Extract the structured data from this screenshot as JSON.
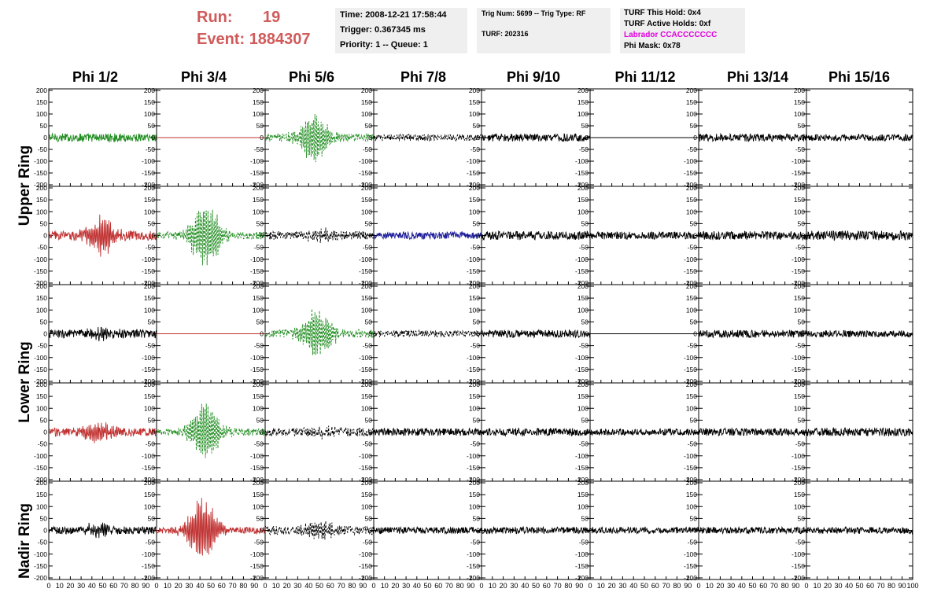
{
  "header": {
    "run_label": "Run:",
    "run_value": "19",
    "event_label": "Event:",
    "event_value": "1884307",
    "time": "Time: 2008-12-21 17:58:44",
    "trigger": "Trigger: 0.367345 ms",
    "priority": "Priority: 1 -- Queue: 1",
    "trig": "Trig Num: 5699 -- Trig Type: RF",
    "turf": "TURF: 202316",
    "turf_hold": "TURF This Hold: 0x4",
    "turf_active": "TURF Active Holds: 0xf",
    "labrador": "Labrador CCACCCCCCC",
    "phi_mask": "Phi Mask: 0x78"
  },
  "columns": [
    "Phi 1/2",
    "Phi 3/4",
    "Phi 5/6",
    "Phi 7/8",
    "Phi 9/10",
    "Phi 11/12",
    "Phi 13/14",
    "Phi 15/16"
  ],
  "rings": [
    "Upper Ring",
    "Lower Ring",
    "Nadir Ring"
  ],
  "colors": {
    "green": "#1e8c1e",
    "red": "#c03030",
    "blue": "#1c1c9a",
    "black": "#000000",
    "header_red": "#d15a5a",
    "magenta": "#e000e0"
  },
  "chart_data": {
    "type": "line",
    "title": "",
    "xlim": [
      0,
      100
    ],
    "ylim": [
      -200,
      200
    ],
    "y_ticks": [
      -200,
      -150,
      -100,
      -50,
      0,
      50,
      100,
      150,
      200
    ],
    "x_ticks": [
      0,
      10,
      20,
      30,
      40,
      50,
      60,
      70,
      80,
      90,
      100
    ],
    "panels": [
      [
        {
          "color": "green",
          "style": "solid",
          "amp": 18,
          "burst": 0,
          "bcenter": 0
        },
        {
          "color": "red",
          "style": "solid",
          "amp": 0,
          "burst": 0,
          "bcenter": 0
        },
        {
          "color": "green",
          "style": "dashed",
          "amp": 18,
          "burst": 110,
          "bcenter": 45
        },
        {
          "color": "black",
          "style": "dashed",
          "amp": 14,
          "burst": 0,
          "bcenter": 0
        },
        {
          "color": "black",
          "style": "solid",
          "amp": 16,
          "burst": 0,
          "bcenter": 0
        },
        {
          "color": "black",
          "style": "solid",
          "amp": 0,
          "burst": 0,
          "bcenter": 0
        },
        {
          "color": "black",
          "style": "solid",
          "amp": 16,
          "burst": 0,
          "bcenter": 0
        },
        {
          "color": "black",
          "style": "solid",
          "amp": 14,
          "burst": 0,
          "bcenter": 0
        }
      ],
      [
        {
          "color": "red",
          "style": "solid",
          "amp": 20,
          "burst": 80,
          "bcenter": 48
        },
        {
          "color": "green",
          "style": "dashed",
          "amp": 16,
          "burst": 150,
          "bcenter": 45
        },
        {
          "color": "black",
          "style": "dashed",
          "amp": 18,
          "burst": 20,
          "bcenter": 50
        },
        {
          "color": "blue",
          "style": "solid",
          "amp": 16,
          "burst": 0,
          "bcenter": 0
        },
        {
          "color": "black",
          "style": "solid",
          "amp": 18,
          "burst": 0,
          "bcenter": 0
        },
        {
          "color": "black",
          "style": "solid",
          "amp": 16,
          "burst": 0,
          "bcenter": 0
        },
        {
          "color": "black",
          "style": "solid",
          "amp": 18,
          "burst": 0,
          "bcenter": 0
        },
        {
          "color": "black",
          "style": "solid",
          "amp": 20,
          "burst": 0,
          "bcenter": 0
        }
      ],
      [
        {
          "color": "black",
          "style": "solid",
          "amp": 18,
          "burst": 20,
          "bcenter": 50
        },
        {
          "color": "red",
          "style": "solid",
          "amp": 0,
          "burst": 0,
          "bcenter": 0
        },
        {
          "color": "green",
          "style": "dashed",
          "amp": 18,
          "burst": 110,
          "bcenter": 48
        },
        {
          "color": "black",
          "style": "dashed",
          "amp": 14,
          "burst": 0,
          "bcenter": 0
        },
        {
          "color": "black",
          "style": "solid",
          "amp": 16,
          "burst": 0,
          "bcenter": 0
        },
        {
          "color": "black",
          "style": "solid",
          "amp": 0,
          "burst": 0,
          "bcenter": 0
        },
        {
          "color": "black",
          "style": "solid",
          "amp": 16,
          "burst": 0,
          "bcenter": 0
        },
        {
          "color": "black",
          "style": "solid",
          "amp": 14,
          "burst": 0,
          "bcenter": 0
        }
      ],
      [
        {
          "color": "red",
          "style": "solid",
          "amp": 18,
          "burst": 45,
          "bcenter": 45
        },
        {
          "color": "green",
          "style": "dashed",
          "amp": 16,
          "burst": 130,
          "bcenter": 45
        },
        {
          "color": "black",
          "style": "dashed",
          "amp": 18,
          "burst": 15,
          "bcenter": 55
        },
        {
          "color": "black",
          "style": "solid",
          "amp": 16,
          "burst": 0,
          "bcenter": 0
        },
        {
          "color": "black",
          "style": "solid",
          "amp": 16,
          "burst": 0,
          "bcenter": 0
        },
        {
          "color": "black",
          "style": "solid",
          "amp": 14,
          "burst": 0,
          "bcenter": 0
        },
        {
          "color": "black",
          "style": "solid",
          "amp": 16,
          "burst": 0,
          "bcenter": 0
        },
        {
          "color": "black",
          "style": "solid",
          "amp": 18,
          "burst": 0,
          "bcenter": 0
        }
      ],
      [
        {
          "color": "black",
          "style": "solid",
          "amp": 16,
          "burst": 25,
          "bcenter": 45
        },
        {
          "color": "red",
          "style": "solid",
          "amp": 14,
          "burst": 140,
          "bcenter": 42
        },
        {
          "color": "black",
          "style": "dashed",
          "amp": 18,
          "burst": 35,
          "bcenter": 50
        },
        {
          "color": "black",
          "style": "solid",
          "amp": 14,
          "burst": 0,
          "bcenter": 0
        },
        {
          "color": "black",
          "style": "solid",
          "amp": 14,
          "burst": 0,
          "bcenter": 0
        },
        {
          "color": "black",
          "style": "solid",
          "amp": 14,
          "burst": 0,
          "bcenter": 0
        },
        {
          "color": "black",
          "style": "solid",
          "amp": 14,
          "burst": 0,
          "bcenter": 0
        },
        {
          "color": "black",
          "style": "solid",
          "amp": 14,
          "burst": 0,
          "bcenter": 0
        }
      ]
    ]
  }
}
